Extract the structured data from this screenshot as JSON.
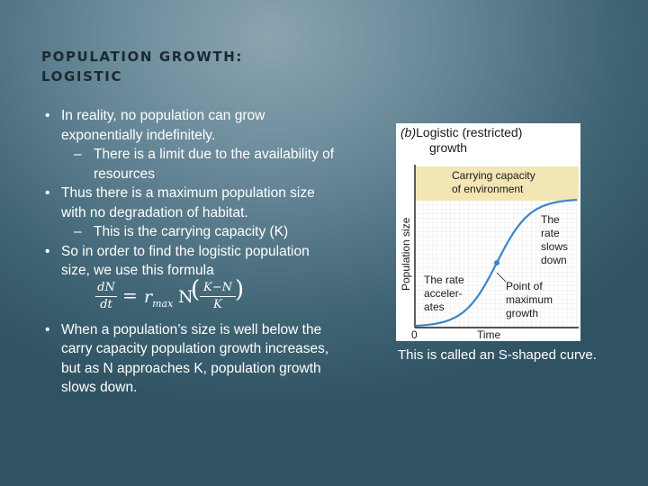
{
  "slide": {
    "title_line1": "POPULATION GROWTH:",
    "title_line2": "LOGISTIC"
  },
  "content": {
    "bullet_char": "•",
    "dash_char": "–",
    "b1": "In reality, no population can grow exponentially indefinitely.",
    "s1": "There is a limit due to the availability of resources",
    "b2": "Thus there is a maximum population size with no degradation of habitat.",
    "s2": "This is the carrying capacity (K)",
    "b3": "So in order to find the logistic population size, we use this formula",
    "b4": "When a population’s size is well below the carry capacity population growth increases, but as N approaches K, population growth slows down."
  },
  "formula": {
    "lhs_num": "dN",
    "lhs_den": "dt",
    "equals": "=",
    "r": "r",
    "r_sub": "max",
    "n": "N",
    "open_paren": "(",
    "frac_num": "K−N",
    "frac_den": "K",
    "close_paren": ")"
  },
  "figure": {
    "panel_label": "(b)",
    "title_line1": "Logistic (restricted)",
    "title_line2": "growth",
    "carrying_line1": "Carrying capacity",
    "carrying_line2": "of environment",
    "ylabel": "Population size",
    "xlabel": "Time",
    "origin": "0",
    "rate_slows": [
      "The",
      "rate",
      "slows",
      "down"
    ],
    "rate_accelerates": [
      "The rate",
      "acceler-",
      "ates"
    ],
    "inflection": [
      "Point of",
      "maximum",
      "growth"
    ],
    "colors": {
      "curve": "#3a86c8",
      "band": "#f2e7b4",
      "grid": "#d9d9d9",
      "text": "#1a1a1a"
    }
  },
  "caption": "This is called an S-shaped curve."
}
